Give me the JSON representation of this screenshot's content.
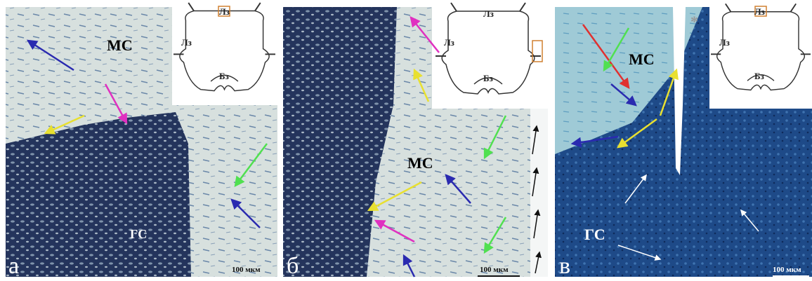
{
  "panels": [
    {
      "letter": "а",
      "labels": [
        "МС",
        "ГС"
      ],
      "scale_bar": "100 мкм",
      "inset": {
        "left": "Лз",
        "top": "Лз",
        "bottom": "Бз"
      }
    },
    {
      "letter": "б",
      "labels": [
        "МС"
      ],
      "scale_bar": "100 мкм",
      "inset": {
        "left": "Лз",
        "top": "Лз",
        "bottom": "Бз"
      }
    },
    {
      "letter": "в",
      "labels": [
        "МС",
        "ГС",
        "*"
      ],
      "scale_bar": "100 мкм",
      "inset": {
        "left": "Лз",
        "top": "Лз",
        "bottom": "Бз"
      }
    }
  ]
}
